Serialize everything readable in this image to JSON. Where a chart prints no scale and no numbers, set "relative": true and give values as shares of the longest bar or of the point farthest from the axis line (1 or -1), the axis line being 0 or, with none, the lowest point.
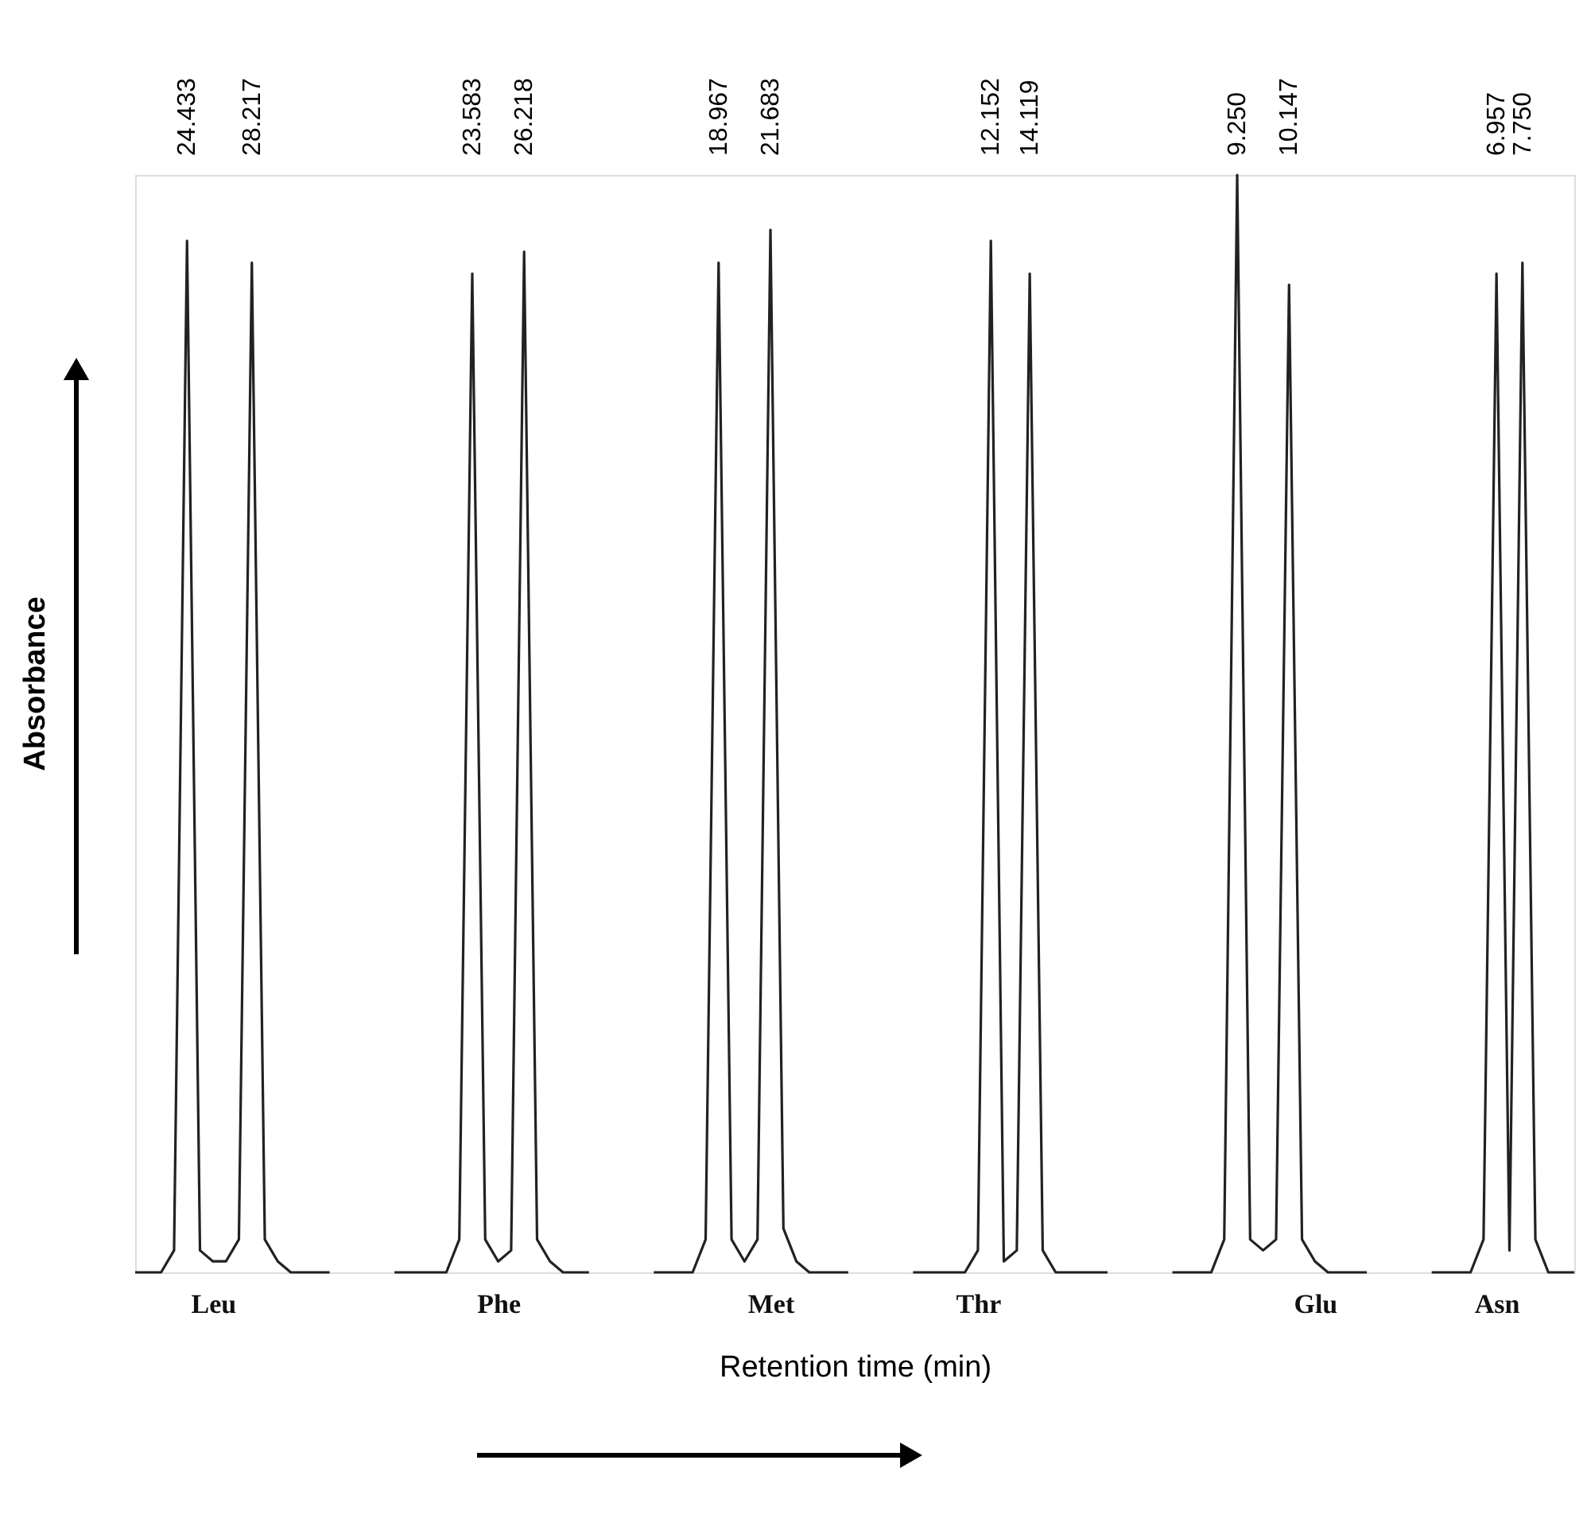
{
  "chart_data": {
    "type": "line",
    "relative": true,
    "xlabel": "Retention time (min)",
    "ylabel": "Absorbance",
    "color": "#222222",
    "grid": false,
    "categories": [
      null,
      null,
      null,
      null,
      null,
      null,
      "Leu",
      null,
      null,
      null,
      null,
      null,
      null,
      null,
      null,
      null,
      null,
      null,
      null,
      null,
      null,
      null,
      null,
      null,
      null,
      null,
      null,
      null,
      "Phe",
      null,
      null,
      null,
      null,
      null,
      null,
      null,
      null,
      null,
      null,
      null,
      null,
      null,
      null,
      null,
      null,
      null,
      null,
      null,
      null,
      "Met",
      null,
      null,
      null,
      null,
      null,
      null,
      null,
      null,
      null,
      null,
      null,
      null,
      null,
      null,
      null,
      "Thr",
      null,
      null,
      null,
      null,
      null,
      null,
      null,
      null,
      null,
      null,
      null,
      null,
      null,
      null,
      null,
      null,
      null,
      null,
      null,
      null,
      null,
      null,
      null,
      null,
      null,
      "Glu",
      null,
      null,
      null,
      null,
      null,
      null,
      null,
      null,
      null,
      null,
      null,
      null,
      null,
      "Asn",
      null,
      null,
      null,
      null,
      null,
      null
    ],
    "values": [
      0,
      0,
      0,
      0.02,
      0.94,
      0.02,
      0.01,
      0.01,
      0.03,
      0.92,
      0.03,
      0.01,
      0,
      0,
      0,
      0,
      null,
      null,
      null,
      null,
      0,
      0,
      0,
      0,
      0,
      0.03,
      0.91,
      0.03,
      0.01,
      0.02,
      0.93,
      0.03,
      0.01,
      0,
      0,
      0,
      null,
      null,
      null,
      null,
      0,
      0,
      0,
      0,
      0.03,
      0.92,
      0.03,
      0.01,
      0.03,
      0.95,
      0.04,
      0.01,
      0,
      0,
      0,
      0,
      null,
      null,
      null,
      null,
      0,
      0,
      0,
      0,
      0,
      0.02,
      0.94,
      0.01,
      0.02,
      0.91,
      0.02,
      0,
      0,
      0,
      0,
      0,
      null,
      null,
      null,
      null,
      0,
      0,
      0,
      0,
      0.03,
      1,
      0.03,
      0.02,
      0.03,
      0.9,
      0.03,
      0.01,
      0,
      0,
      0,
      0,
      null,
      null,
      null,
      null,
      0,
      0,
      0,
      0,
      0.03,
      0.91,
      0.02,
      0.92,
      0.03,
      0,
      0,
      0
    ],
    "annotations": [
      "24.433",
      "28.217",
      "23.583",
      "26.218",
      "18.967",
      "21.683",
      "12.152",
      "14.119",
      "9.250",
      "10.147",
      "6.957",
      "7.750"
    ]
  }
}
